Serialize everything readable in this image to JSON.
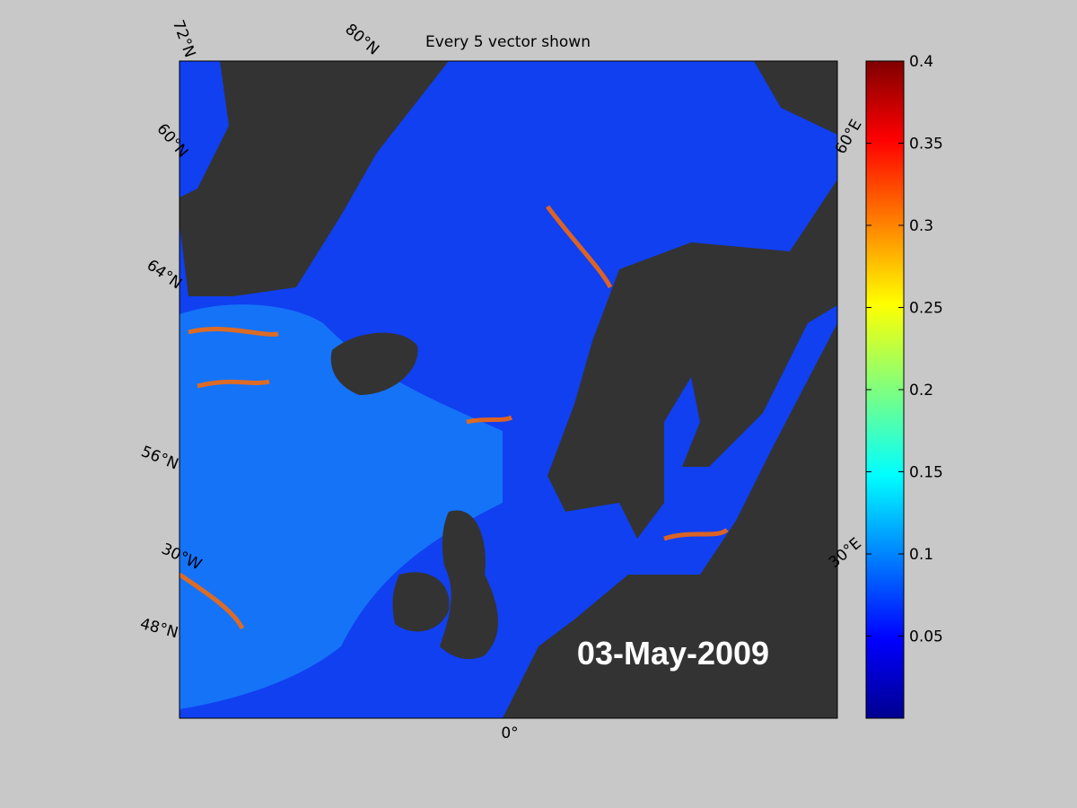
{
  "title": "Every 5 vector shown",
  "date_label": "03-May-2009",
  "map_labels": {
    "lat": [
      "72°N",
      "80°N",
      "60°N",
      "64°N",
      "56°N",
      "48°N"
    ],
    "lon": [
      "30°W",
      "0°",
      "30°E",
      "60°E"
    ]
  },
  "colorbar": {
    "lim": [
      0,
      0.4
    ],
    "ticks": [
      0.05,
      0.1,
      0.15,
      0.2,
      0.25,
      0.3,
      0.35,
      0.4
    ]
  }
}
